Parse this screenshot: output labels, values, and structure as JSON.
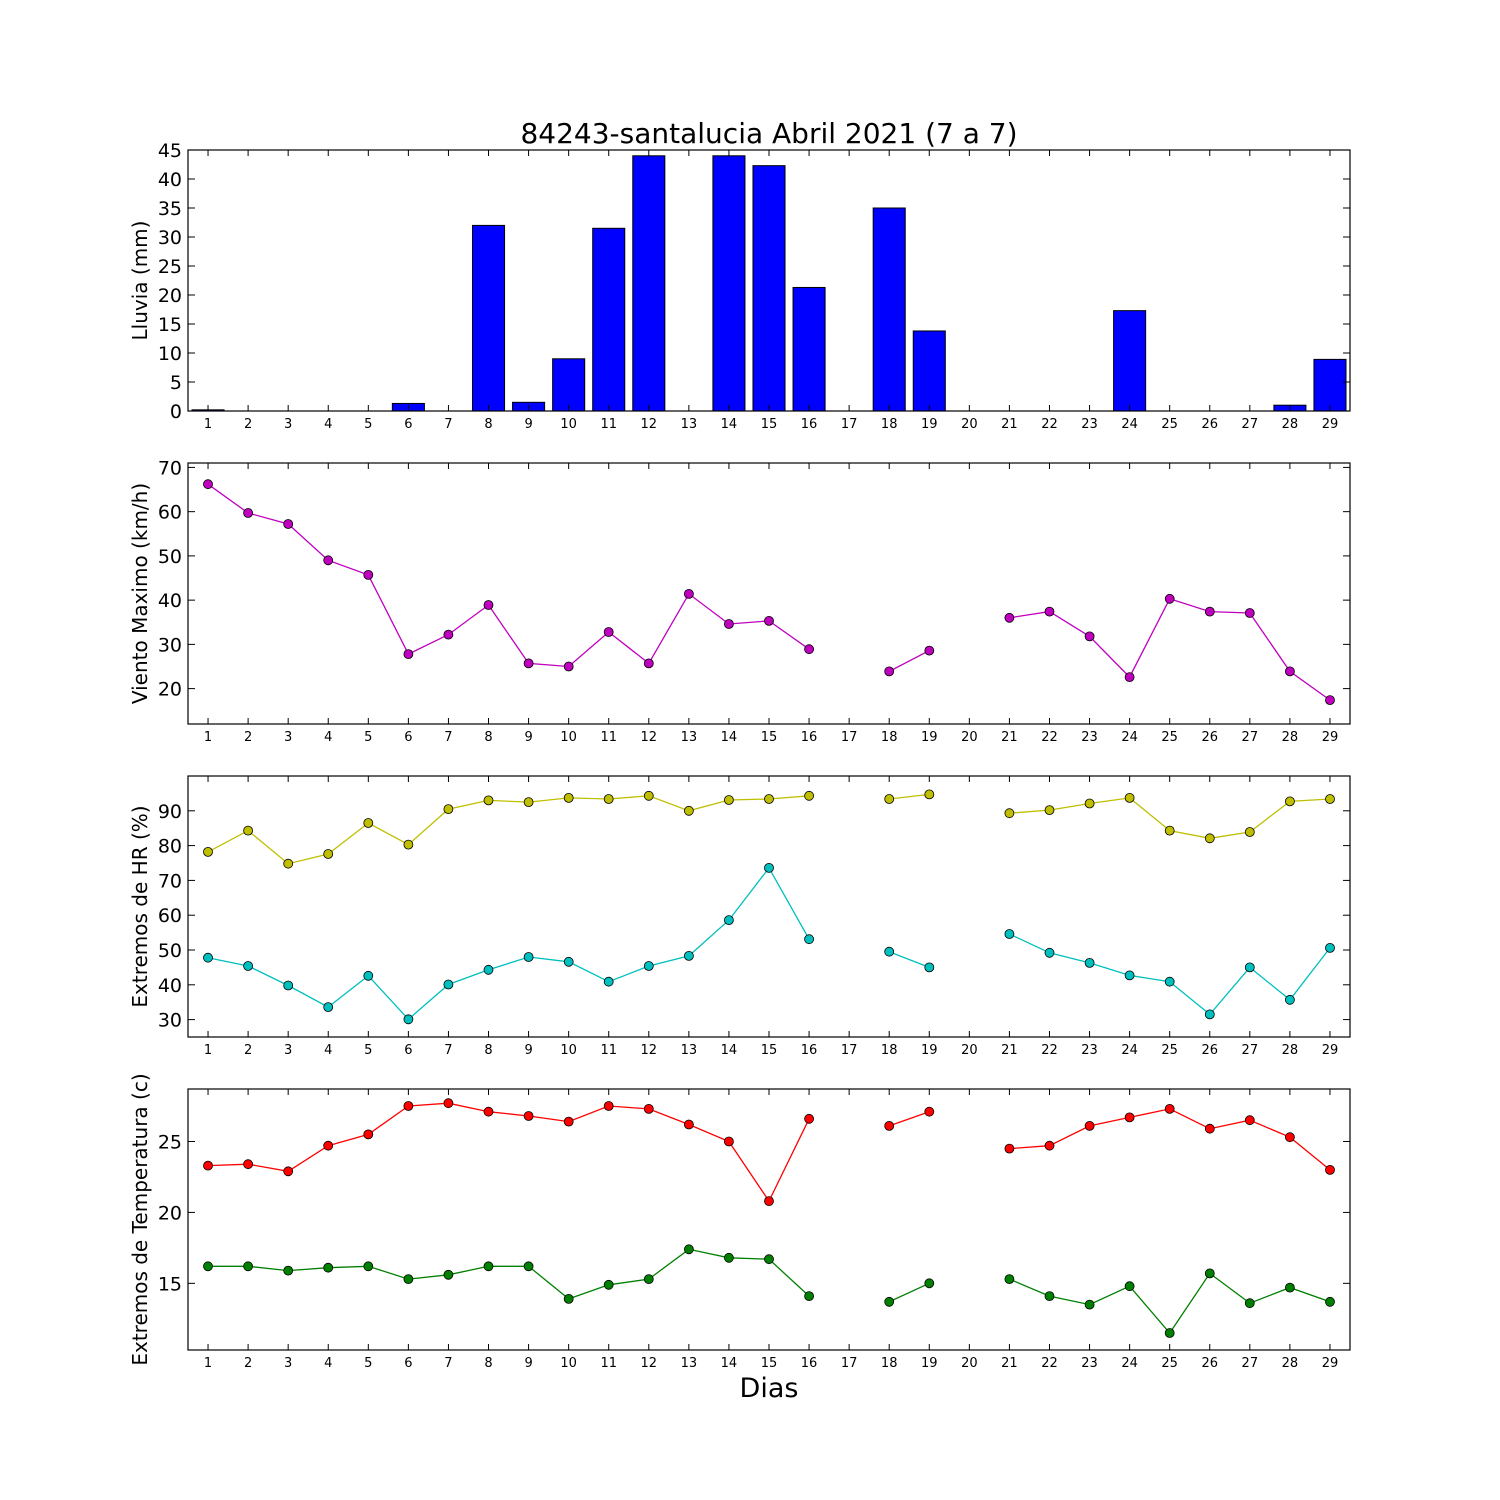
{
  "figure": {
    "title": "84243-santalucia Abril 2021  (7 a 7)",
    "xlabel": "Dias"
  },
  "chart_data": [
    {
      "type": "bar",
      "ylabel": "Lluvia (mm)",
      "ylim": [
        0,
        45
      ],
      "yticks": [
        0,
        5,
        10,
        15,
        20,
        25,
        30,
        35,
        40,
        45
      ],
      "xlim": [
        0.5,
        29.5
      ],
      "categories": [
        1,
        2,
        3,
        4,
        5,
        6,
        7,
        8,
        9,
        10,
        11,
        12,
        13,
        14,
        15,
        16,
        17,
        18,
        19,
        20,
        21,
        22,
        23,
        24,
        25,
        26,
        27,
        28,
        29
      ],
      "series": [
        {
          "color": "#0000ff",
          "values": [
            0.2,
            0,
            0,
            0,
            0,
            1.3,
            0,
            32,
            1.5,
            9,
            31.5,
            44,
            0,
            44,
            42.3,
            21.3,
            0,
            35,
            13.8,
            0,
            0,
            0,
            0,
            17.3,
            0,
            0,
            0,
            1,
            8.9
          ]
        }
      ]
    },
    {
      "type": "line",
      "ylabel": "Viento Maximo (km/h)",
      "ylim": [
        12,
        71
      ],
      "yticks": [
        20,
        30,
        40,
        50,
        60,
        70
      ],
      "xlim": [
        0.5,
        29.5
      ],
      "x": [
        1,
        2,
        3,
        4,
        5,
        6,
        7,
        8,
        9,
        10,
        11,
        12,
        13,
        14,
        15,
        16,
        17,
        18,
        19,
        20,
        21,
        22,
        23,
        24,
        25,
        26,
        27,
        28,
        29
      ],
      "series": [
        {
          "color": "#bf00bf",
          "values": [
            66.2,
            59.7,
            57.2,
            49,
            45.7,
            27.8,
            32.2,
            38.9,
            25.7,
            25,
            32.8,
            25.7,
            41.4,
            34.6,
            35.3,
            28.9,
            null,
            23.9,
            28.6,
            null,
            36,
            37.4,
            31.8,
            22.6,
            40.3,
            37.4,
            37.1,
            23.9,
            17.4
          ]
        }
      ]
    },
    {
      "type": "line",
      "ylabel": "Extremos de HR (%)",
      "ylim": [
        25,
        100
      ],
      "yticks": [
        30,
        40,
        50,
        60,
        70,
        80,
        90
      ],
      "xlim": [
        0.5,
        29.5
      ],
      "x": [
        1,
        2,
        3,
        4,
        5,
        6,
        7,
        8,
        9,
        10,
        11,
        12,
        13,
        14,
        15,
        16,
        17,
        18,
        19,
        20,
        21,
        22,
        23,
        24,
        25,
        26,
        27,
        28,
        29
      ],
      "series": [
        {
          "color": "#bfbf00",
          "values": [
            78.2,
            84.3,
            74.8,
            77.6,
            86.5,
            80.3,
            90.5,
            93,
            92.5,
            93.7,
            93.4,
            94.3,
            90,
            93.1,
            93.4,
            94.3,
            null,
            93.4,
            94.7,
            null,
            89.3,
            90.2,
            92.1,
            93.7,
            84.3,
            82.1,
            83.9,
            92.7,
            93.4
          ]
        },
        {
          "color": "#00bfbf",
          "values": [
            47.8,
            45.4,
            39.8,
            33.6,
            42.6,
            30.1,
            40.1,
            44.3,
            48,
            46.6,
            40.9,
            45.4,
            48.3,
            58.6,
            73.6,
            53.1,
            null,
            49.5,
            45,
            null,
            54.6,
            49.2,
            46.3,
            42.7,
            40.9,
            31.5,
            45,
            35.7,
            50.6
          ]
        }
      ]
    },
    {
      "type": "line",
      "ylabel": "Extremos de Temperatura (c)",
      "ylim": [
        10.3,
        28.7
      ],
      "yticks": [
        15,
        20,
        25
      ],
      "xlim": [
        0.5,
        29.5
      ],
      "x": [
        1,
        2,
        3,
        4,
        5,
        6,
        7,
        8,
        9,
        10,
        11,
        12,
        13,
        14,
        15,
        16,
        17,
        18,
        19,
        20,
        21,
        22,
        23,
        24,
        25,
        26,
        27,
        28,
        29
      ],
      "series": [
        {
          "color": "#ff0000",
          "values": [
            23.3,
            23.4,
            22.9,
            24.7,
            25.5,
            27.5,
            27.7,
            27.1,
            26.8,
            26.4,
            27.5,
            27.3,
            26.2,
            25,
            20.8,
            26.6,
            null,
            26.1,
            27.1,
            null,
            24.5,
            24.7,
            26.1,
            26.7,
            27.3,
            25.9,
            26.5,
            25.3,
            23
          ]
        },
        {
          "color": "#008000",
          "values": [
            16.2,
            16.2,
            15.9,
            16.1,
            16.2,
            15.3,
            15.6,
            16.2,
            16.2,
            13.9,
            14.9,
            15.3,
            17.4,
            16.8,
            16.7,
            14.1,
            null,
            13.7,
            15,
            null,
            15.3,
            14.1,
            13.5,
            14.8,
            11.5,
            15.7,
            13.6,
            14.7,
            13.7
          ]
        }
      ]
    }
  ]
}
